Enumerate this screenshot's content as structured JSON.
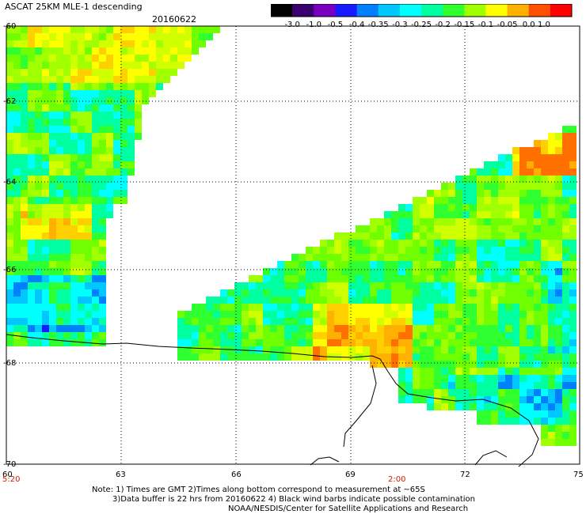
{
  "header": {
    "title": "ASCAT 25KM MLE-1 descending",
    "date": "20160622"
  },
  "colorbar": {
    "labels": [
      "-3.0",
      "-1.0",
      "-0.5",
      "-0.4",
      "-0.35",
      "-0.3",
      "-0.25",
      "-0.2",
      "-0.15",
      "-0.1",
      "-0.05",
      "0.0",
      "1.0"
    ],
    "colors": [
      "#000000",
      "#3a0070",
      "#7a00c0",
      "#1a1aff",
      "#0080ff",
      "#00c8ff",
      "#00ffff",
      "#00ffa0",
      "#30ff30",
      "#a0ff00",
      "#ffff00",
      "#ffb000",
      "#ff5000",
      "#ff0000"
    ]
  },
  "map": {
    "lat_labels": [
      "-60",
      "-62",
      "-64",
      "-66",
      "-68",
      "-70"
    ],
    "lon_labels": [
      "60",
      "63",
      "66",
      "69",
      "72",
      "75"
    ],
    "time_labels": [
      "5:20",
      "2:00"
    ],
    "time_color": "#cc2200"
  },
  "notes": {
    "line1": "Note: 1) Times are GMT 2)Times along bottom correspond to measurement at ~65S",
    "line2": "3)Data buffer is 22 hrs from 20160622 4) Black wind barbs indicate possible contamination",
    "line3": "NOAA/NESDIS/Center for Satellite Applications and Research"
  }
}
